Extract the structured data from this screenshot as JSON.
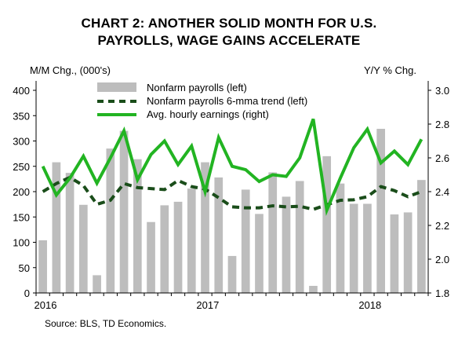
{
  "chart_data": {
    "type": "bar",
    "title_line1": "CHART 2: ANOTHER SOLID MONTH FOR U.S.",
    "title_line2": "PAYROLLS,  WAGE GAINS ACCELERATE",
    "ylabel_left": "M/M Chg., (000's)",
    "ylabel_right": "Y/Y % Chg.",
    "ylim_left": [
      0,
      400
    ],
    "ylim_right": [
      1.8,
      3.0
    ],
    "y_ticks_left": [
      "0",
      "50",
      "100",
      "150",
      "200",
      "250",
      "300",
      "350",
      "400"
    ],
    "y_ticks_right": [
      "1.8",
      "2.0",
      "2.2",
      "2.4",
      "2.6",
      "2.8",
      "3.0"
    ],
    "x_ticks": [
      {
        "label": "2016",
        "index": 0
      },
      {
        "label": "2017",
        "index": 12
      },
      {
        "label": "2018",
        "index": 24
      }
    ],
    "categories": [
      "2016-01",
      "2016-02",
      "2016-03",
      "2016-04",
      "2016-05",
      "2016-06",
      "2016-07",
      "2016-08",
      "2016-09",
      "2016-10",
      "2016-11",
      "2016-12",
      "2017-01",
      "2017-02",
      "2017-03",
      "2017-04",
      "2017-05",
      "2017-06",
      "2017-07",
      "2017-08",
      "2017-09",
      "2017-10",
      "2017-11",
      "2017-12",
      "2018-01",
      "2018-02",
      "2018-03",
      "2018-04",
      "2018-05"
    ],
    "series": [
      {
        "name": "Nonfarm payrolls (left)",
        "kind": "bar",
        "axis": "left",
        "color": "#bdbdbd",
        "values": [
          104,
          258,
          237,
          174,
          35,
          285,
          320,
          264,
          140,
          173,
          180,
          206,
          258,
          228,
          73,
          204,
          156,
          238,
          190,
          221,
          14,
          270,
          216,
          176,
          176,
          324,
          155,
          159,
          223
        ]
      },
      {
        "name": "Nonfarm payrolls 6-mma trend (left)",
        "kind": "line",
        "axis": "left",
        "color": "#1a4d1a",
        "dashed": true,
        "values": [
          200,
          216,
          228,
          212,
          175,
          183,
          216,
          208,
          206,
          204,
          222,
          210,
          205,
          188,
          170,
          168,
          168,
          172,
          170,
          171,
          165,
          174,
          183,
          184,
          190,
          210,
          202,
          190,
          200
        ]
      },
      {
        "name": "Avg. hourly earnings (right)",
        "kind": "line",
        "axis": "right",
        "color": "#22b422",
        "dashed": false,
        "values": [
          2.55,
          2.38,
          2.48,
          2.61,
          2.45,
          2.6,
          2.76,
          2.47,
          2.62,
          2.7,
          2.56,
          2.67,
          2.4,
          2.72,
          2.55,
          2.53,
          2.46,
          2.5,
          2.49,
          2.6,
          2.83,
          2.29,
          2.48,
          2.66,
          2.77,
          2.57,
          2.64,
          2.56,
          2.71
        ]
      }
    ],
    "legend_position": "top-left",
    "grid": false,
    "source": "Source: BLS, TD Economics."
  }
}
